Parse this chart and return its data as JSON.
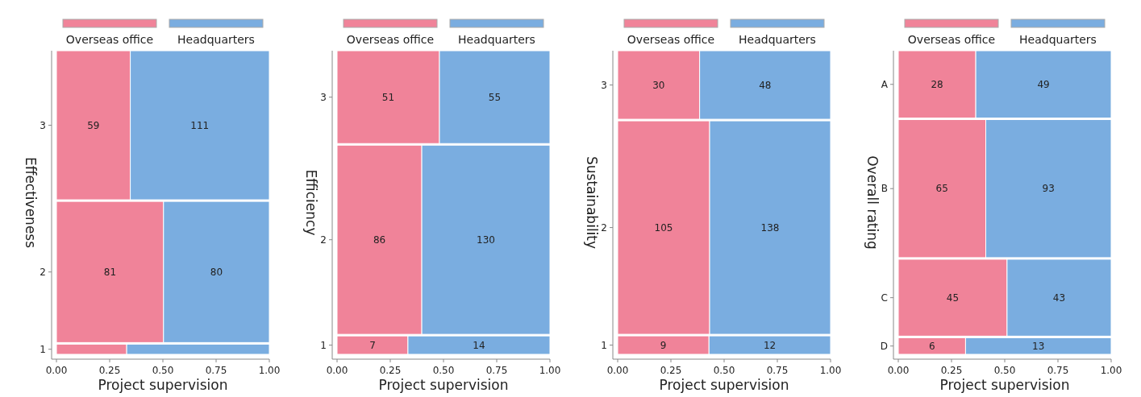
{
  "chart_data": [
    {
      "type": "bar",
      "orientation": "horizontal",
      "stacked": true,
      "categories": [
        "3",
        "2",
        "1"
      ],
      "xlabel": "Project supervision",
      "ylabel": "Effectiveness",
      "xlim": [
        0,
        1
      ],
      "xticks": [
        {
          "value": 0,
          "label": "0.00"
        },
        {
          "value": 0.25,
          "label": "0.25"
        },
        {
          "value": 0.5,
          "label": "0.50"
        },
        {
          "value": 0.75,
          "label": "0.75"
        },
        {
          "value": 1,
          "label": "1.00"
        }
      ],
      "legend": "top",
      "series": [
        {
          "name": "Overseas office",
          "color": "#f08399",
          "values": [
            0.347,
            0.503,
            0.33
          ]
        },
        {
          "name": "Headquarters",
          "color": "#7aade0",
          "values": [
            0.653,
            0.497,
            0.67
          ]
        }
      ],
      "annotations": [
        "59",
        "111",
        "81",
        "80"
      ]
    },
    {
      "type": "bar",
      "orientation": "horizontal",
      "stacked": true,
      "categories": [
        "3",
        "2",
        "1"
      ],
      "xlabel": "Project supervision",
      "ylabel": "Efficiency",
      "xlim": [
        0,
        1
      ],
      "xticks": [
        {
          "value": 0,
          "label": "0.00"
        },
        {
          "value": 0.25,
          "label": "0.25"
        },
        {
          "value": 0.5,
          "label": "0.50"
        },
        {
          "value": 0.75,
          "label": "0.75"
        },
        {
          "value": 1,
          "label": "1.00"
        }
      ],
      "legend": "top",
      "series": [
        {
          "name": "Overseas office",
          "color": "#f08399",
          "values": [
            0.481,
            0.398,
            0.333
          ]
        },
        {
          "name": "Headquarters",
          "color": "#7aade0",
          "values": [
            0.519,
            0.602,
            0.667
          ]
        }
      ],
      "annotations": [
        "51",
        "55",
        "86",
        "130",
        "7",
        "14"
      ]
    },
    {
      "type": "bar",
      "orientation": "horizontal",
      "stacked": true,
      "categories": [
        "3",
        "2",
        "1"
      ],
      "xlabel": "Project supervision",
      "ylabel": "Sustainability",
      "xlim": [
        0,
        1
      ],
      "xticks": [
        {
          "value": 0,
          "label": "0.00"
        },
        {
          "value": 0.25,
          "label": "0.25"
        },
        {
          "value": 0.5,
          "label": "0.50"
        },
        {
          "value": 0.75,
          "label": "0.75"
        },
        {
          "value": 1,
          "label": "1.00"
        }
      ],
      "legend": "top",
      "series": [
        {
          "name": "Overseas office",
          "color": "#f08399",
          "values": [
            0.385,
            0.432,
            0.429
          ]
        },
        {
          "name": "Headquarters",
          "color": "#7aade0",
          "values": [
            0.615,
            0.568,
            0.571
          ]
        }
      ],
      "annotations": [
        "30",
        "48",
        "105",
        "138",
        "9",
        "12"
      ]
    },
    {
      "type": "bar",
      "orientation": "horizontal",
      "stacked": true,
      "categories": [
        "A",
        "B",
        "C",
        "D"
      ],
      "xlabel": "Project supervision",
      "ylabel": "Overall rating",
      "xlim": [
        0,
        1
      ],
      "xticks": [
        {
          "value": 0,
          "label": "0.00"
        },
        {
          "value": 0.25,
          "label": "0.25"
        },
        {
          "value": 0.5,
          "label": "0.50"
        },
        {
          "value": 0.75,
          "label": "0.75"
        },
        {
          "value": 1,
          "label": "1.00"
        }
      ],
      "legend": "top",
      "series": [
        {
          "name": "Overseas office",
          "color": "#f08399",
          "values": [
            0.364,
            0.411,
            0.511,
            0.316
          ]
        },
        {
          "name": "Headquarters",
          "color": "#7aade0",
          "values": [
            0.636,
            0.589,
            0.489,
            0.684
          ]
        }
      ],
      "annotations": [
        "28",
        "49",
        "65",
        "93",
        "45",
        "43",
        "6",
        "13"
      ]
    }
  ]
}
